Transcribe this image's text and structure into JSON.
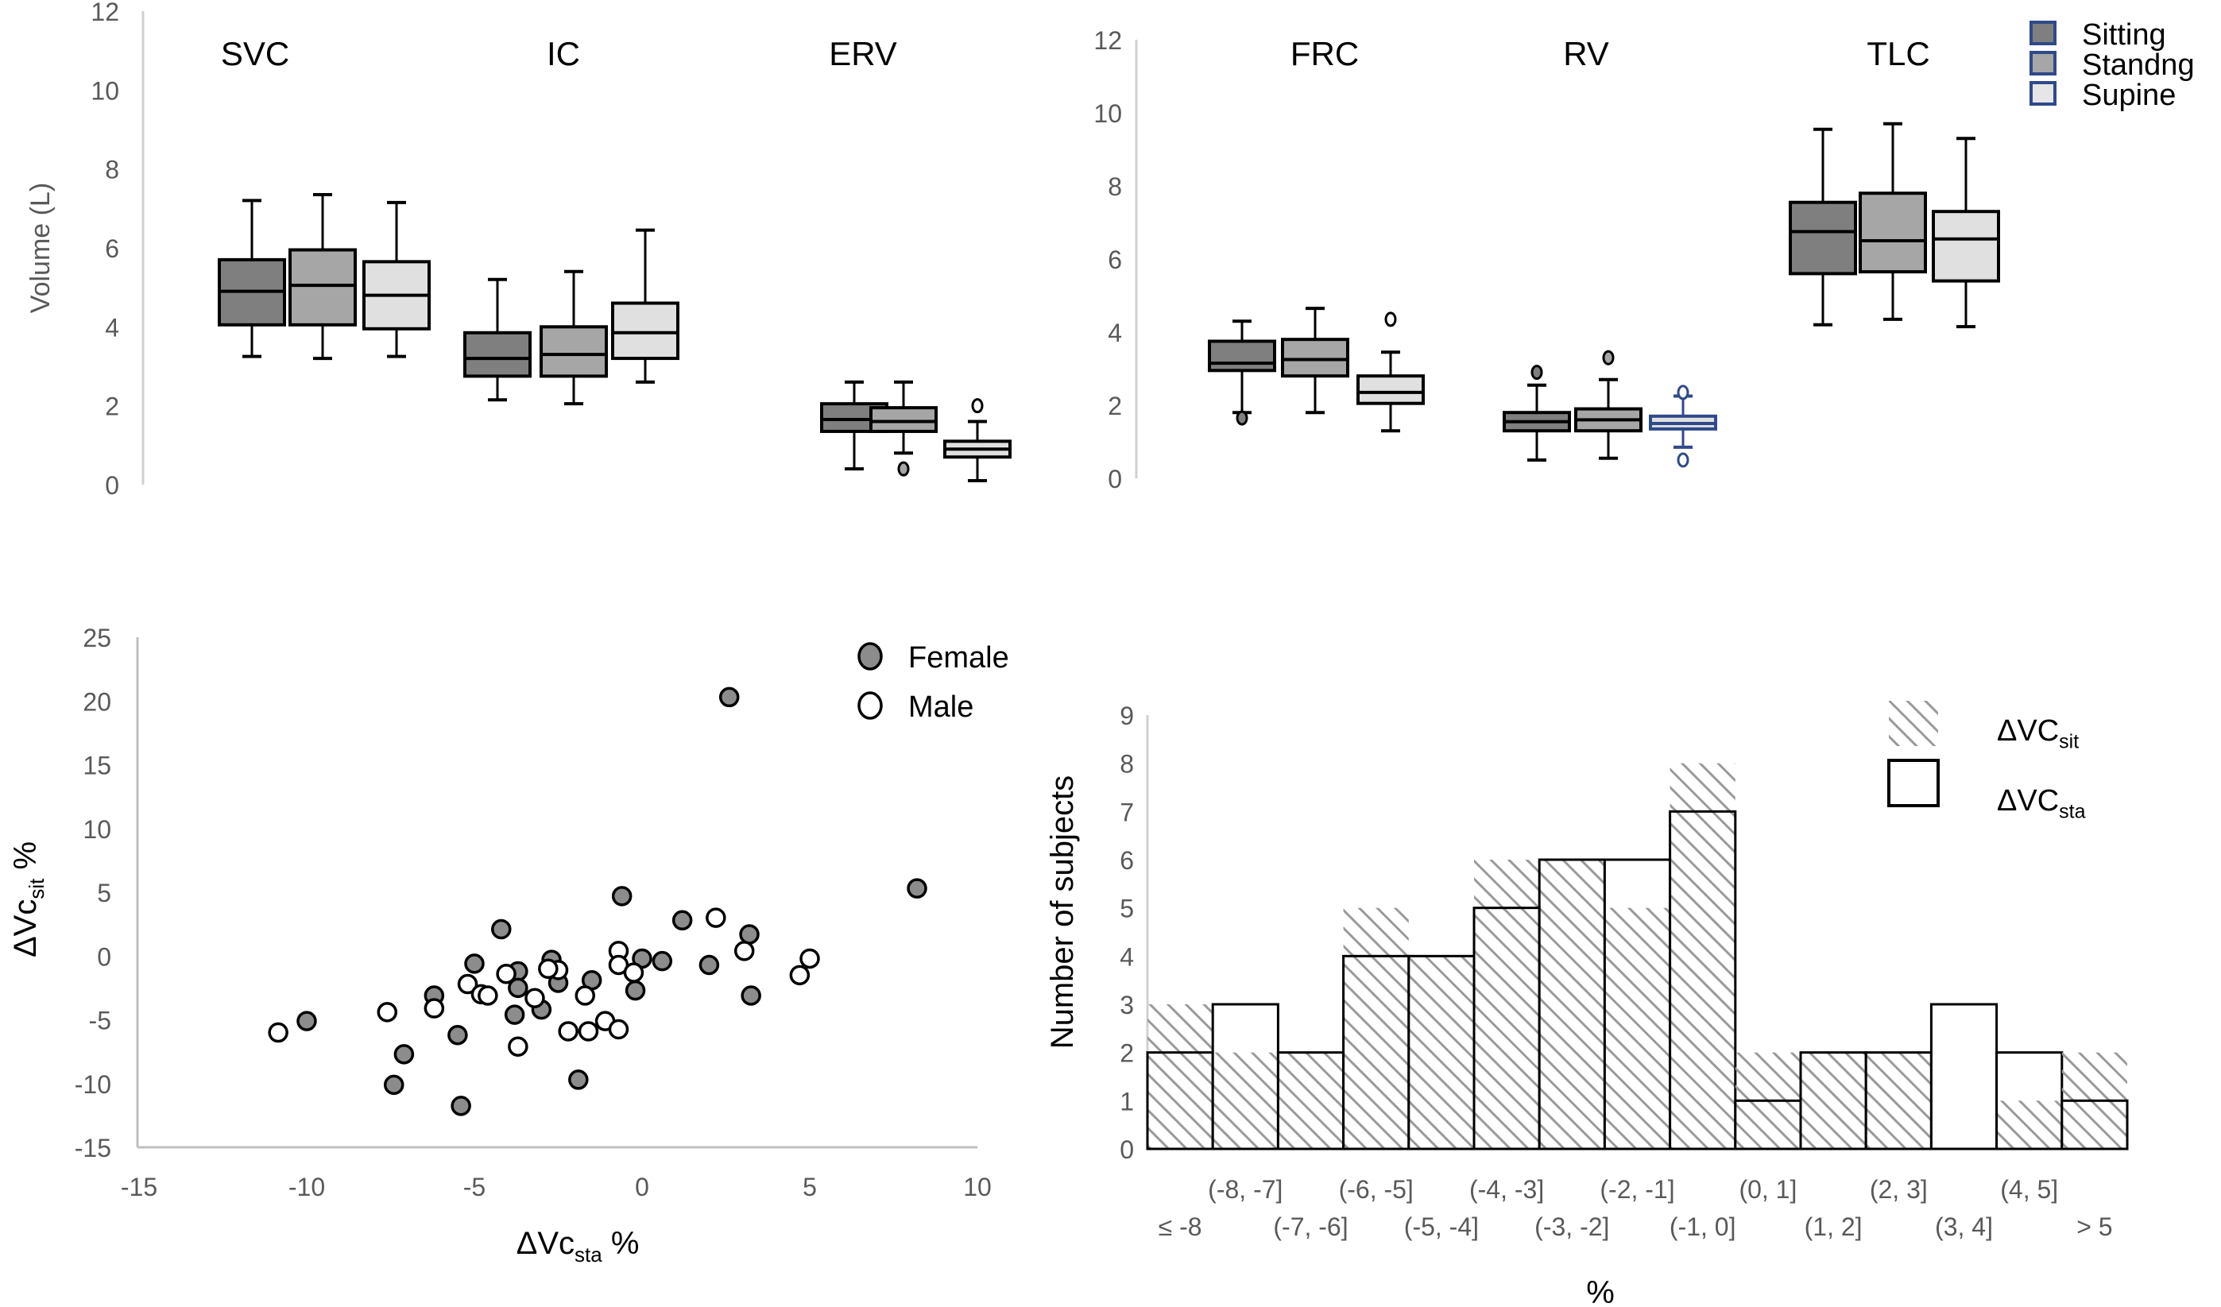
{
  "chart_data": [
    {
      "type": "boxplot",
      "ylabel": "Volume (L)",
      "ylim": [
        0,
        12
      ],
      "yticks": [
        0,
        2,
        4,
        6,
        8,
        10,
        12
      ],
      "grid": false,
      "groups": [
        {
          "label": "SVC",
          "boxes": [
            {
              "series": "Sitting",
              "min": 3.25,
              "q1": 4.05,
              "median": 4.9,
              "q3": 5.7,
              "max": 7.2,
              "outliers": []
            },
            {
              "series": "Standng",
              "min": 3.2,
              "q1": 4.05,
              "median": 5.05,
              "q3": 5.95,
              "max": 7.35,
              "outliers": []
            },
            {
              "series": "Supine",
              "min": 3.25,
              "q1": 3.95,
              "median": 4.8,
              "q3": 5.65,
              "max": 7.15,
              "outliers": []
            }
          ]
        },
        {
          "label": "IC",
          "boxes": [
            {
              "series": "Sitting",
              "min": 2.15,
              "q1": 2.75,
              "median": 3.2,
              "q3": 3.85,
              "max": 5.2,
              "outliers": []
            },
            {
              "series": "Standng",
              "min": 2.05,
              "q1": 2.75,
              "median": 3.3,
              "q3": 4.0,
              "max": 5.4,
              "outliers": []
            },
            {
              "series": "Supine",
              "min": 2.6,
              "q1": 3.2,
              "median": 3.85,
              "q3": 4.6,
              "max": 6.45,
              "outliers": []
            }
          ]
        },
        {
          "label": "ERV",
          "boxes": [
            {
              "series": "Sitting",
              "min": 0.4,
              "q1": 1.35,
              "median": 1.65,
              "q3": 2.05,
              "max": 2.6,
              "outliers": []
            },
            {
              "series": "Standng",
              "min": 0.8,
              "q1": 1.35,
              "median": 1.6,
              "q3": 1.95,
              "max": 2.6,
              "outliers": [
                0.4
              ]
            },
            {
              "series": "Supine",
              "min": 0.1,
              "q1": 0.7,
              "median": 0.9,
              "q3": 1.1,
              "max": 1.6,
              "outliers": [
                2.0
              ]
            }
          ]
        }
      ]
    },
    {
      "type": "boxplot",
      "ylim": [
        0,
        12
      ],
      "yticks": [
        0,
        2,
        4,
        6,
        8,
        10,
        12
      ],
      "grid": false,
      "legend_position": "top-right",
      "legend": [
        {
          "label": "Sitting",
          "color": "#7f7f7f"
        },
        {
          "label": "Standng",
          "color": "#a6a6a6"
        },
        {
          "label": "Supine",
          "color": "#e6e6e6"
        }
      ],
      "groups": [
        {
          "label": "FRC",
          "boxes": [
            {
              "series": "Sitting",
              "min": 1.8,
              "q1": 2.95,
              "median": 3.15,
              "q3": 3.75,
              "max": 4.3,
              "outliers": [
                1.65
              ]
            },
            {
              "series": "Standng",
              "min": 1.8,
              "q1": 2.8,
              "median": 3.25,
              "q3": 3.8,
              "max": 4.65,
              "outliers": []
            },
            {
              "series": "Supine",
              "min": 1.3,
              "q1": 2.05,
              "median": 2.35,
              "q3": 2.8,
              "max": 3.45,
              "outliers": [
                4.35
              ]
            }
          ]
        },
        {
          "label": "RV",
          "boxes": [
            {
              "series": "Sitting",
              "min": 0.5,
              "q1": 1.3,
              "median": 1.55,
              "q3": 1.8,
              "max": 2.55,
              "outliers": [
                2.9
              ]
            },
            {
              "series": "Standng",
              "min": 0.55,
              "q1": 1.3,
              "median": 1.6,
              "q3": 1.9,
              "max": 2.7,
              "outliers": [
                3.3
              ]
            },
            {
              "series": "Supine",
              "min": 0.85,
              "q1": 1.35,
              "median": 1.5,
              "q3": 1.7,
              "max": 2.25,
              "outliers": [
                0.5,
                2.35
              ]
            }
          ]
        },
        {
          "label": "TLC",
          "boxes": [
            {
              "series": "Sitting",
              "min": 4.2,
              "q1": 5.6,
              "median": 6.75,
              "q3": 7.55,
              "max": 9.55,
              "outliers": []
            },
            {
              "series": "Standng",
              "min": 4.35,
              "q1": 5.65,
              "median": 6.5,
              "q3": 7.8,
              "max": 9.7,
              "outliers": []
            },
            {
              "series": "Supine",
              "min": 4.15,
              "q1": 5.4,
              "median": 6.55,
              "q3": 7.3,
              "max": 9.3,
              "outliers": []
            }
          ]
        }
      ]
    },
    {
      "type": "scatter",
      "xlabel": {
        "main": "ΔVc",
        "sub": "sta",
        "suffix": " %"
      },
      "ylabel": {
        "main": "ΔVc",
        "sub": "sit",
        "suffix": " %"
      },
      "xlim": [
        -15,
        10
      ],
      "ylim": [
        -15,
        25
      ],
      "xticks": [
        -15,
        -10,
        -5,
        0,
        5,
        10
      ],
      "yticks": [
        -15,
        -10,
        -5,
        0,
        5,
        10,
        15,
        20,
        25
      ],
      "grid": false,
      "legend_position": "top-right",
      "series": [
        {
          "name": "Female",
          "color": "#8c8c8c",
          "points": [
            [
              2.6,
              20.3
            ],
            [
              8.2,
              5.3
            ],
            [
              -0.6,
              4.7
            ],
            [
              1.2,
              2.8
            ],
            [
              3.2,
              1.7
            ],
            [
              -4.2,
              2.1
            ],
            [
              -5.0,
              -0.6
            ],
            [
              -2.7,
              -0.3
            ],
            [
              -3.7,
              -1.2
            ],
            [
              0.0,
              -0.2
            ],
            [
              0.6,
              -0.4
            ],
            [
              2.0,
              -0.7
            ],
            [
              -2.5,
              -2.1
            ],
            [
              -1.5,
              -1.9
            ],
            [
              -3.7,
              -2.5
            ],
            [
              -0.2,
              -2.7
            ],
            [
              3.25,
              -3.1
            ],
            [
              -6.2,
              -3.1
            ],
            [
              -3.0,
              -4.2
            ],
            [
              -3.8,
              -4.6
            ],
            [
              -10.0,
              -5.1
            ],
            [
              -5.5,
              -6.2
            ],
            [
              -7.1,
              -7.7
            ],
            [
              -7.4,
              -10.1
            ],
            [
              -1.9,
              -9.7
            ],
            [
              -5.4,
              -11.75
            ]
          ]
        },
        {
          "name": "Male",
          "color": "#ffffff",
          "points": [
            [
              2.2,
              3.0
            ],
            [
              3.05,
              0.4
            ],
            [
              5.0,
              -0.2
            ],
            [
              4.7,
              -1.5
            ],
            [
              -0.7,
              0.4
            ],
            [
              -0.7,
              -0.7
            ],
            [
              -0.25,
              -1.3
            ],
            [
              -4.05,
              -1.4
            ],
            [
              -2.5,
              -1.1
            ],
            [
              -2.8,
              -1.0
            ],
            [
              -5.2,
              -2.2
            ],
            [
              -4.8,
              -3.0
            ],
            [
              -4.6,
              -3.1
            ],
            [
              -3.2,
              -3.3
            ],
            [
              -1.7,
              -3.1
            ],
            [
              -6.2,
              -4.1
            ],
            [
              -7.6,
              -4.4
            ],
            [
              -1.1,
              -5.1
            ],
            [
              -1.6,
              -5.9
            ],
            [
              -0.7,
              -5.75
            ],
            [
              -2.2,
              -5.9
            ],
            [
              -3.7,
              -7.1
            ],
            [
              -10.85,
              -6.0
            ]
          ]
        }
      ]
    },
    {
      "type": "bar",
      "xlabel": "%",
      "ylabel": "Number of subjects",
      "ylim": [
        0,
        9
      ],
      "yticks": [
        0,
        1,
        2,
        3,
        4,
        5,
        6,
        7,
        8,
        9
      ],
      "grid": false,
      "legend_position": "top-right",
      "categories": [
        "≤ -8",
        "(-8, -7]",
        "(-7, -6]",
        "(-6, -5]",
        "(-5, -4]",
        "(-4, -3]",
        "(-3, -2]",
        "(-2, -1]",
        "(-1, 0]",
        "(0, 1]",
        "(1, 2]",
        "(2, 3]",
        "(3, 4]",
        "(4, 5]",
        "> 5"
      ],
      "series": [
        {
          "name": {
            "main": "ΔVC",
            "sub": "sit"
          },
          "style": "hatched",
          "color": "#a0a0a0",
          "values": [
            3,
            2,
            2,
            5,
            4,
            6,
            6,
            5,
            8,
            2,
            2,
            2,
            0,
            1,
            2
          ]
        },
        {
          "name": {
            "main": "ΔVC",
            "sub": "sta"
          },
          "style": "outline",
          "color": "#000000",
          "values": [
            2,
            3,
            2,
            4,
            4,
            5,
            6,
            6,
            7,
            1,
            2,
            2,
            3,
            2,
            1
          ]
        }
      ]
    }
  ]
}
